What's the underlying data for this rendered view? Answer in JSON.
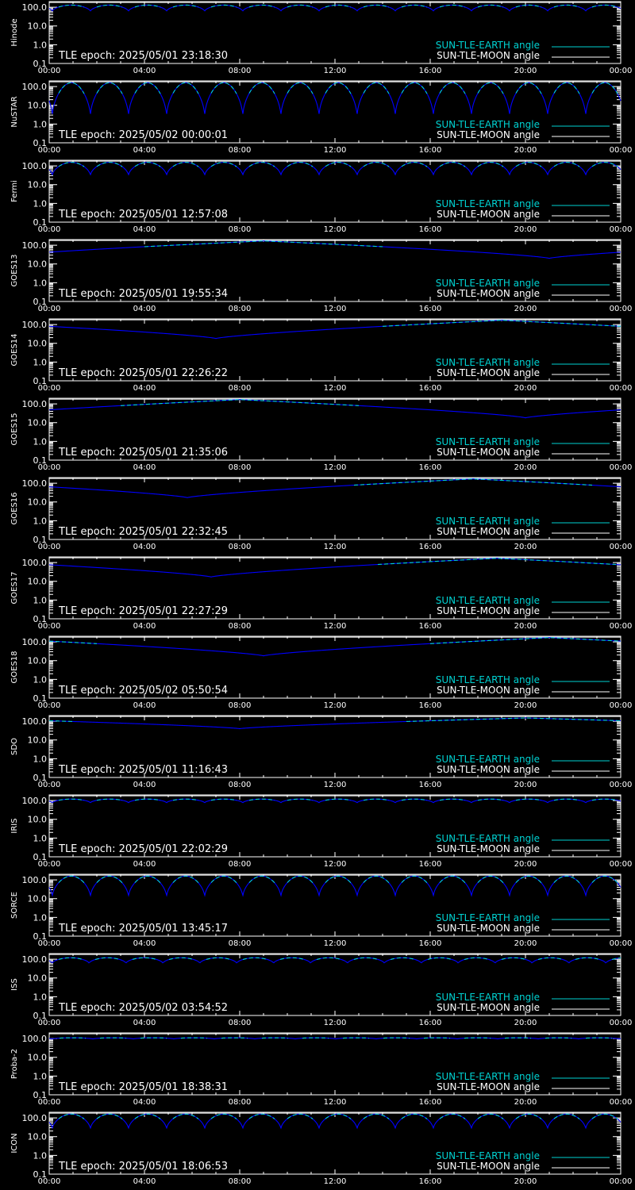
{
  "chart_data": {
    "type": "line",
    "ylim": [
      0.1,
      200
    ],
    "y_scale": "log",
    "ytick_labels": [
      "100.0",
      "10.0",
      "1.0",
      "0.1"
    ],
    "ytick_values": [
      100,
      10,
      1,
      0.1
    ],
    "xtick_labels": [
      "00:00",
      "04:00",
      "08:00",
      "12:00",
      "16:00",
      "20:00",
      "00:00"
    ],
    "xlim_hours": [
      0,
      24
    ],
    "legend_position": "bottom-right",
    "legend": [
      {
        "label": "SUN-TLE-EARTH angle",
        "color": "#00d2d2"
      },
      {
        "label": "SUN-TLE-MOON angle",
        "color": "#ffffff"
      }
    ],
    "earth_color": "#00d2d2",
    "moon_color": "#ffffff",
    "sun_curve_color": "#0000ff",
    "moon_angle_value": 180,
    "panels": [
      {
        "satellite": "Hinode",
        "epoch": "TLE epoch: 2025/05/01 23:18:30",
        "pattern": "periodic",
        "period_h": 1.6,
        "min": 60,
        "max": 130
      },
      {
        "satellite": "NuSTAR",
        "epoch": "TLE epoch: 2025/05/02 00:00:01",
        "pattern": "periodic",
        "period_h": 1.6,
        "min": 2.5,
        "max": 160
      },
      {
        "satellite": "Fermi",
        "epoch": "TLE epoch: 2025/05/01 12:57:08",
        "pattern": "periodic",
        "period_h": 1.6,
        "min": 30,
        "max": 155
      },
      {
        "satellite": "GOES13",
        "epoch": "TLE epoch: 2025/05/01 19:55:34",
        "pattern": "daily",
        "trough_h": 21.0,
        "min": 20,
        "max": 170
      },
      {
        "satellite": "GOES14",
        "epoch": "TLE epoch: 2025/05/01 22:26:22",
        "pattern": "daily",
        "trough_h": 7.0,
        "min": 18,
        "max": 170
      },
      {
        "satellite": "GOES15",
        "epoch": "TLE epoch: 2025/05/01 21:35:06",
        "pattern": "daily",
        "trough_h": 20.0,
        "min": 18,
        "max": 170
      },
      {
        "satellite": "GOES16",
        "epoch": "TLE epoch: 2025/05/01 22:32:45",
        "pattern": "daily",
        "trough_h": 5.8,
        "min": 17,
        "max": 170
      },
      {
        "satellite": "GOES17",
        "epoch": "TLE epoch: 2025/05/01 22:27:29",
        "pattern": "daily",
        "trough_h": 6.8,
        "min": 17,
        "max": 170
      },
      {
        "satellite": "GOES18",
        "epoch": "TLE epoch: 2025/05/02 05:50:54",
        "pattern": "daily",
        "trough_h": 9.0,
        "min": 18,
        "max": 170
      },
      {
        "satellite": "SDO",
        "epoch": "TLE epoch: 2025/05/01 11:16:43",
        "pattern": "daily",
        "trough_h": 8.0,
        "min": 40,
        "max": 150
      },
      {
        "satellite": "IRIS",
        "epoch": "TLE epoch: 2025/05/01 22:02:29",
        "pattern": "periodic",
        "period_h": 1.6,
        "min": 75,
        "max": 120
      },
      {
        "satellite": "SORCE",
        "epoch": "TLE epoch: 2025/05/01 13:45:17",
        "pattern": "periodic",
        "period_h": 1.6,
        "min": 12,
        "max": 160
      },
      {
        "satellite": "ISS",
        "epoch": "TLE epoch: 2025/05/02 03:54:52",
        "pattern": "periodic",
        "period_h": 1.55,
        "min": 60,
        "max": 120
      },
      {
        "satellite": "Proba-2",
        "epoch": "TLE epoch: 2025/05/01 18:38:31",
        "pattern": "periodic",
        "period_h": 1.7,
        "min": 95,
        "max": 110
      },
      {
        "satellite": "ICON",
        "epoch": "TLE epoch: 2025/05/01 18:06:53",
        "pattern": "periodic",
        "period_h": 1.6,
        "min": 25,
        "max": 160
      }
    ]
  }
}
